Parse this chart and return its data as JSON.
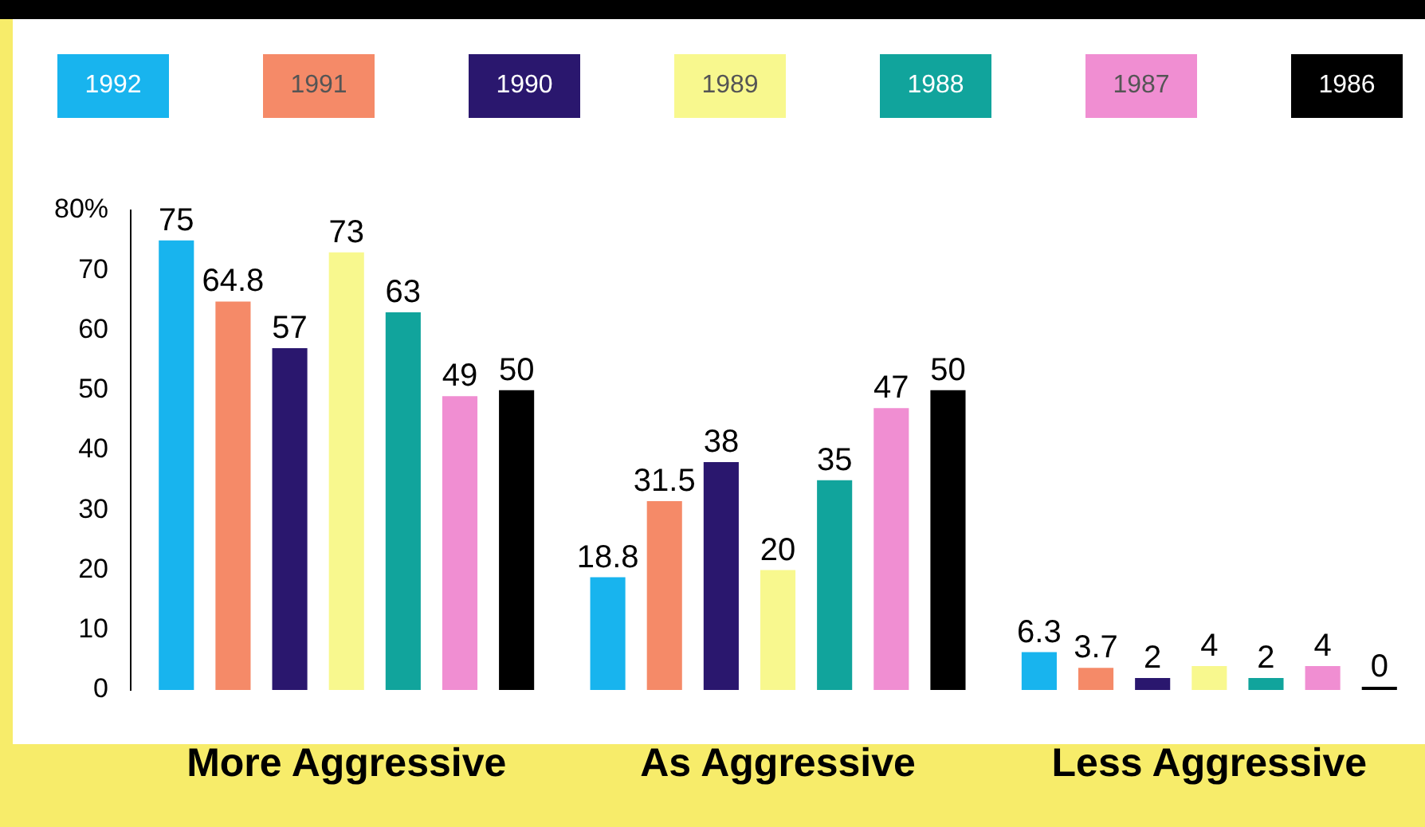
{
  "chart_data": {
    "type": "bar",
    "categories": [
      "More Aggressive",
      "As Aggressive",
      "Less Aggressive"
    ],
    "series": [
      {
        "name": "1992",
        "color": "#18b4ee",
        "values": [
          75,
          18.8,
          6.3
        ]
      },
      {
        "name": "1991",
        "color": "#f58a68",
        "values": [
          64.8,
          31.5,
          3.7
        ]
      },
      {
        "name": "1990",
        "color": "#2a176e",
        "values": [
          57,
          38,
          2
        ]
      },
      {
        "name": "1989",
        "color": "#f8f88e",
        "values": [
          73,
          20,
          4
        ]
      },
      {
        "name": "1988",
        "color": "#11a49c",
        "values": [
          63,
          35,
          2
        ]
      },
      {
        "name": "1987",
        "color": "#f08ed2",
        "values": [
          49,
          47,
          4
        ]
      },
      {
        "name": "1986",
        "color": "#000000",
        "values": [
          50,
          50,
          0
        ]
      }
    ],
    "ylim": [
      0,
      80
    ],
    "yticks": [
      0,
      10,
      20,
      30,
      40,
      50,
      60,
      70,
      {
        "value": 80,
        "label": "80%"
      }
    ],
    "grid": false,
    "legend": "top",
    "data_labels": true
  }
}
